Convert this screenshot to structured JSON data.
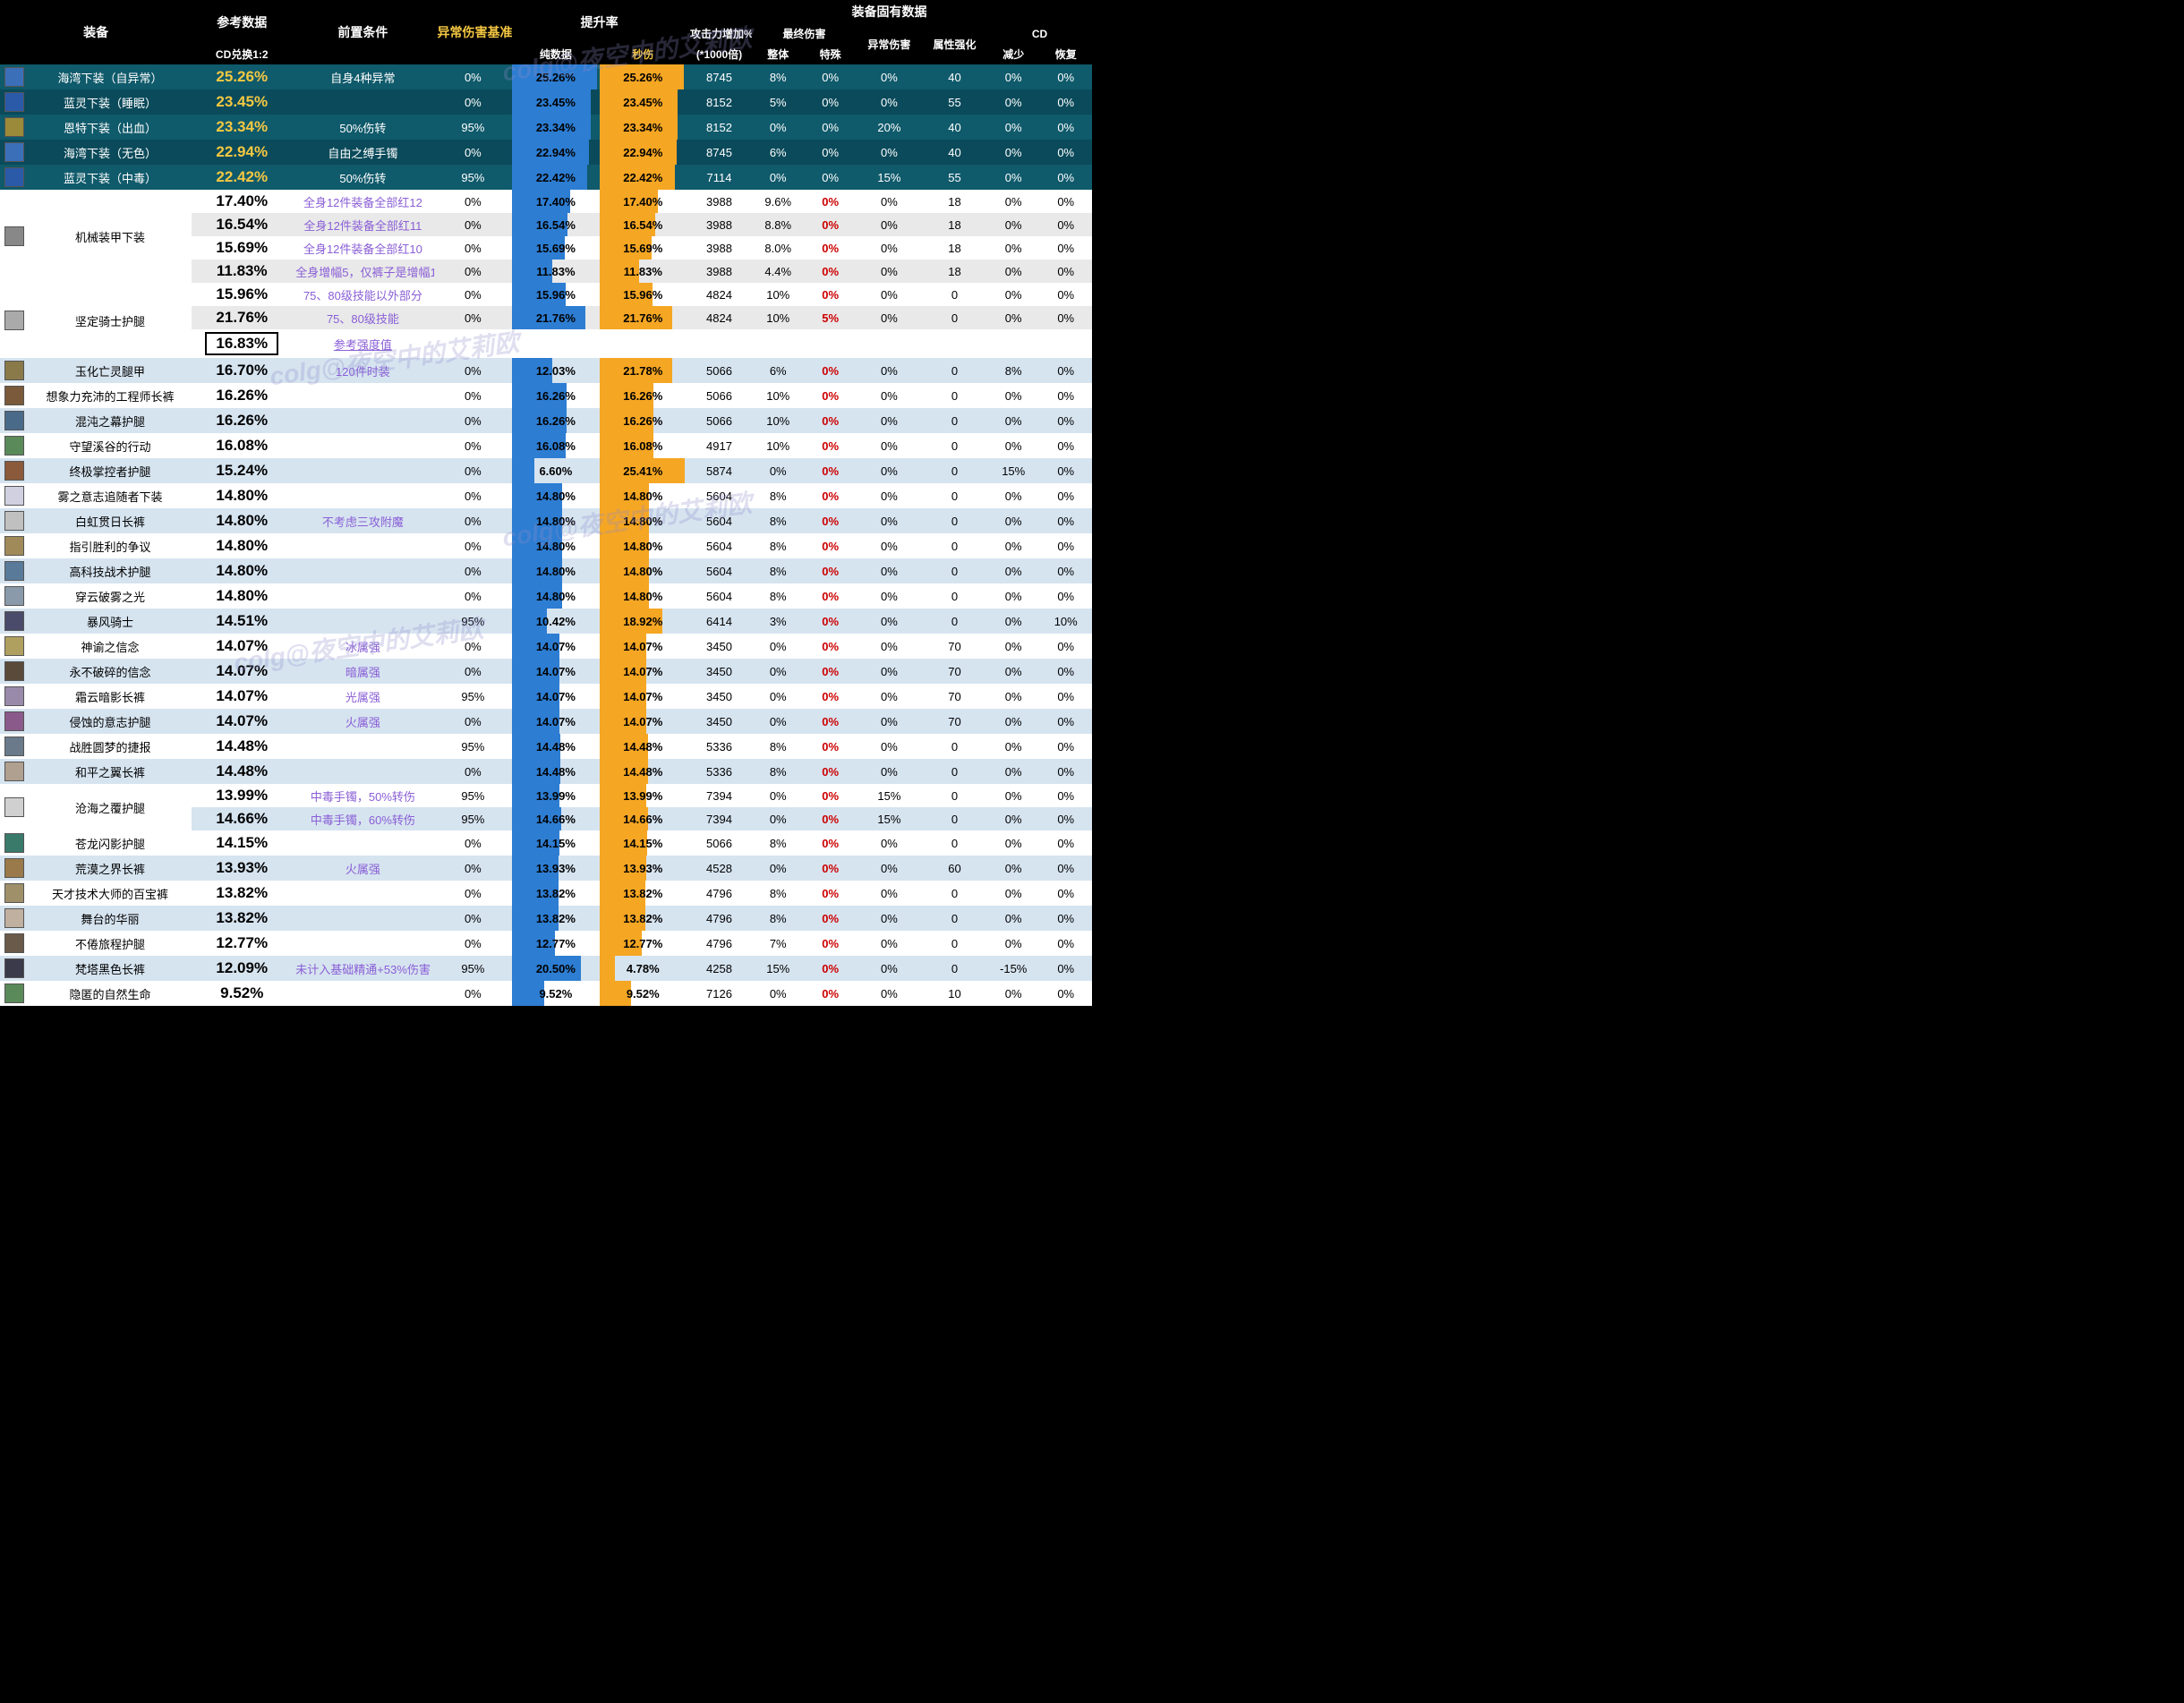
{
  "watermark": "colg@夜空中的艾莉欧",
  "headers": {
    "equip": "装备",
    "ref": "参考数据",
    "ref_sub": "CD兑换1:2",
    "cond": "前置条件",
    "abn": "异常伤害基准",
    "rate": "提升率",
    "rate_pure": "纯数据",
    "rate_dps": "秒伤",
    "inherent": "装备固有数据",
    "atk": "攻击力增加%",
    "atk_sub": "(*1000倍)",
    "final": "最终伤害",
    "final_all": "整体",
    "final_sp": "特殊",
    "abn_dmg": "异常伤害",
    "attr": "属性强化",
    "cd": "CD",
    "cd_red": "减少",
    "cd_rec": "恢复"
  },
  "max_bar": 26,
  "rows": [
    {
      "cls": "teal",
      "ic": "#3b6fb8",
      "name": "海湾下装（自异常）",
      "cd": "25.26%",
      "cdY": true,
      "cond": "自身4种异常",
      "condC": "w",
      "abn": "0%",
      "pure": "25.26%",
      "pureN": 25.26,
      "dps": "25.26%",
      "dpsN": 25.26,
      "atk": "8745",
      "fAll": "8%",
      "fSp": "0%",
      "fSpR": false,
      "ab": "0%",
      "at": "40",
      "cr": "0%",
      "cc": "0%"
    },
    {
      "cls": "teal2",
      "ic": "#2a5aa8",
      "name": "蓝灵下装（睡眠）",
      "cd": "23.45%",
      "cdY": true,
      "cond": "",
      "condC": "",
      "abn": "0%",
      "pure": "23.45%",
      "pureN": 23.45,
      "dps": "23.45%",
      "dpsN": 23.45,
      "atk": "8152",
      "fAll": "5%",
      "fSp": "0%",
      "fSpR": false,
      "ab": "0%",
      "at": "55",
      "cr": "0%",
      "cc": "0%"
    },
    {
      "cls": "teal",
      "ic": "#9a8a3a",
      "name": "恩特下装（出血）",
      "cd": "23.34%",
      "cdY": true,
      "cond": "50%伤转",
      "condC": "w",
      "abn": "95%",
      "pure": "23.34%",
      "pureN": 23.34,
      "dps": "23.34%",
      "dpsN": 23.34,
      "atk": "8152",
      "fAll": "0%",
      "fSp": "0%",
      "fSpR": false,
      "ab": "20%",
      "at": "40",
      "cr": "0%",
      "cc": "0%"
    },
    {
      "cls": "teal2",
      "ic": "#3b6fb8",
      "name": "海湾下装（无色）",
      "cd": "22.94%",
      "cdY": true,
      "cond": "自由之缚手镯",
      "condC": "w",
      "abn": "0%",
      "pure": "22.94%",
      "pureN": 22.94,
      "dps": "22.94%",
      "dpsN": 22.94,
      "atk": "8745",
      "fAll": "6%",
      "fSp": "0%",
      "fSpR": false,
      "ab": "0%",
      "at": "40",
      "cr": "0%",
      "cc": "0%"
    },
    {
      "cls": "teal",
      "ic": "#2a5aa8",
      "name": "蓝灵下装（中毒）",
      "cd": "22.42%",
      "cdY": true,
      "cond": "50%伤转",
      "condC": "w",
      "abn": "95%",
      "pure": "22.42%",
      "pureN": 22.42,
      "dps": "22.42%",
      "dpsN": 22.42,
      "atk": "7114",
      "fAll": "0%",
      "fSp": "0%",
      "fSpR": false,
      "ab": "15%",
      "at": "55",
      "cr": "0%",
      "cc": "0%"
    },
    {
      "cls": "w",
      "ic": "",
      "name": "",
      "cd": "17.40%",
      "cdY": false,
      "cond": "全身12件装备全部红12",
      "condC": "p",
      "abn": "0%",
      "pure": "17.40%",
      "pureN": 17.4,
      "dps": "17.40%",
      "dpsN": 17.4,
      "atk": "3988",
      "fAll": "9.6%",
      "fSp": "0%",
      "fSpR": true,
      "ab": "0%",
      "at": "18",
      "cr": "0%",
      "cc": "0%",
      "group": "mech",
      "gs": 4
    },
    {
      "cls": "g",
      "ic": "#888",
      "name": "机械装甲下装",
      "cd": "16.54%",
      "cdY": false,
      "cond": "全身12件装备全部红11",
      "condC": "p",
      "abn": "0%",
      "pure": "16.54%",
      "pureN": 16.54,
      "dps": "16.54%",
      "dpsN": 16.54,
      "atk": "3988",
      "fAll": "8.8%",
      "fSp": "0%",
      "fSpR": true,
      "ab": "0%",
      "at": "18",
      "cr": "0%",
      "cc": "0%",
      "group": "mech"
    },
    {
      "cls": "w",
      "ic": "",
      "name": "",
      "cd": "15.69%",
      "cdY": false,
      "cond": "全身12件装备全部红10",
      "condC": "p",
      "abn": "0%",
      "pure": "15.69%",
      "pureN": 15.69,
      "dps": "15.69%",
      "dpsN": 15.69,
      "atk": "3988",
      "fAll": "8.0%",
      "fSp": "0%",
      "fSpR": true,
      "ab": "0%",
      "at": "18",
      "cr": "0%",
      "cc": "0%",
      "group": "mech"
    },
    {
      "cls": "g",
      "ic": "",
      "name": "",
      "cd": "11.83%",
      "cdY": false,
      "cond": "全身增幅5，仅裤子是增幅10",
      "condC": "p",
      "abn": "0%",
      "pure": "11.83%",
      "pureN": 11.83,
      "dps": "11.83%",
      "dpsN": 11.83,
      "atk": "3988",
      "fAll": "4.4%",
      "fSp": "0%",
      "fSpR": true,
      "ab": "0%",
      "at": "18",
      "cr": "0%",
      "cc": "0%",
      "group": "mech"
    },
    {
      "cls": "w",
      "ic": "",
      "name": "",
      "cd": "15.96%",
      "cdY": false,
      "cond": "75、80级技能以外部分",
      "condC": "p",
      "abn": "0%",
      "pure": "15.96%",
      "pureN": 15.96,
      "dps": "15.96%",
      "dpsN": 15.96,
      "atk": "4824",
      "fAll": "10%",
      "fSp": "0%",
      "fSpR": true,
      "ab": "0%",
      "at": "0",
      "cr": "0%",
      "cc": "0%",
      "group": "knight",
      "gs": 3
    },
    {
      "cls": "g",
      "ic": "#aaa",
      "name": "坚定骑士护腿",
      "cd": "21.76%",
      "cdY": false,
      "cond": "75、80级技能",
      "condC": "p",
      "abn": "0%",
      "pure": "21.76%",
      "pureN": 21.76,
      "dps": "21.76%",
      "dpsN": 21.76,
      "atk": "4824",
      "fAll": "10%",
      "fSp": "5%",
      "fSpR": true,
      "ab": "0%",
      "at": "0",
      "cr": "0%",
      "cc": "0%",
      "group": "knight"
    },
    {
      "cls": "w",
      "ic": "",
      "name": "",
      "cd": "16.83%",
      "cdY": false,
      "cdBox": true,
      "cond": "参考强度值",
      "condC": "u",
      "abn": "",
      "pure": "",
      "pureN": 0,
      "dps": "",
      "dpsN": 0,
      "atk": "",
      "fAll": "",
      "fSp": "",
      "fSpR": false,
      "ab": "",
      "at": "",
      "cr": "",
      "cc": "",
      "group": "knight",
      "nobars": true
    },
    {
      "cls": "lb",
      "ic": "#8a7a4a",
      "name": "玉化亡灵腿甲",
      "cd": "16.70%",
      "cdY": false,
      "cond": "120件时装",
      "condC": "p",
      "abn": "0%",
      "pure": "12.03%",
      "pureN": 12.03,
      "dps": "21.78%",
      "dpsN": 21.78,
      "atk": "5066",
      "fAll": "6%",
      "fSp": "0%",
      "fSpR": true,
      "ab": "0%",
      "at": "0",
      "cr": "8%",
      "cc": "0%"
    },
    {
      "cls": "w",
      "ic": "#7a5a3a",
      "name": "想象力充沛的工程师长裤",
      "cd": "16.26%",
      "cdY": false,
      "cond": "",
      "condC": "",
      "abn": "0%",
      "pure": "16.26%",
      "pureN": 16.26,
      "dps": "16.26%",
      "dpsN": 16.26,
      "atk": "5066",
      "fAll": "10%",
      "fSp": "0%",
      "fSpR": true,
      "ab": "0%",
      "at": "0",
      "cr": "0%",
      "cc": "0%"
    },
    {
      "cls": "lb",
      "ic": "#4a6a8a",
      "name": "混沌之幕护腿",
      "cd": "16.26%",
      "cdY": false,
      "cond": "",
      "condC": "",
      "abn": "0%",
      "pure": "16.26%",
      "pureN": 16.26,
      "dps": "16.26%",
      "dpsN": 16.26,
      "atk": "5066",
      "fAll": "10%",
      "fSp": "0%",
      "fSpR": true,
      "ab": "0%",
      "at": "0",
      "cr": "0%",
      "cc": "0%"
    },
    {
      "cls": "w",
      "ic": "#5a8a5a",
      "name": "守望溪谷的行动",
      "cd": "16.08%",
      "cdY": false,
      "cond": "",
      "condC": "",
      "abn": "0%",
      "pure": "16.08%",
      "pureN": 16.08,
      "dps": "16.08%",
      "dpsN": 16.08,
      "atk": "4917",
      "fAll": "10%",
      "fSp": "0%",
      "fSpR": true,
      "ab": "0%",
      "at": "0",
      "cr": "0%",
      "cc": "0%"
    },
    {
      "cls": "lb",
      "ic": "#8a5a3a",
      "name": "终极掌控者护腿",
      "cd": "15.24%",
      "cdY": false,
      "cond": "",
      "condC": "",
      "abn": "0%",
      "pure": "6.60%",
      "pureN": 6.6,
      "dps": "25.41%",
      "dpsN": 25.41,
      "atk": "5874",
      "fAll": "0%",
      "fSp": "0%",
      "fSpR": true,
      "ab": "0%",
      "at": "0",
      "cr": "15%",
      "cc": "0%"
    },
    {
      "cls": "w",
      "ic": "#d0d0e0",
      "name": "雾之意志追随者下装",
      "cd": "14.80%",
      "cdY": false,
      "cond": "",
      "condC": "",
      "abn": "0%",
      "pure": "14.80%",
      "pureN": 14.8,
      "dps": "14.80%",
      "dpsN": 14.8,
      "atk": "5604",
      "fAll": "8%",
      "fSp": "0%",
      "fSpR": true,
      "ab": "0%",
      "at": "0",
      "cr": "0%",
      "cc": "0%"
    },
    {
      "cls": "lb",
      "ic": "#c0c0c0",
      "name": "白虹贯日长裤",
      "cd": "14.80%",
      "cdY": false,
      "cond": "不考虑三攻附魔",
      "condC": "p",
      "abn": "0%",
      "pure": "14.80%",
      "pureN": 14.8,
      "dps": "14.80%",
      "dpsN": 14.8,
      "atk": "5604",
      "fAll": "8%",
      "fSp": "0%",
      "fSpR": true,
      "ab": "0%",
      "at": "0",
      "cr": "0%",
      "cc": "0%"
    },
    {
      "cls": "w",
      "ic": "#a08a5a",
      "name": "指引胜利的争议",
      "cd": "14.80%",
      "cdY": false,
      "cond": "",
      "condC": "",
      "abn": "0%",
      "pure": "14.80%",
      "pureN": 14.8,
      "dps": "14.80%",
      "dpsN": 14.8,
      "atk": "5604",
      "fAll": "8%",
      "fSp": "0%",
      "fSpR": true,
      "ab": "0%",
      "at": "0",
      "cr": "0%",
      "cc": "0%"
    },
    {
      "cls": "lb",
      "ic": "#5a7a9a",
      "name": "高科技战术护腿",
      "cd": "14.80%",
      "cdY": false,
      "cond": "",
      "condC": "",
      "abn": "0%",
      "pure": "14.80%",
      "pureN": 14.8,
      "dps": "14.80%",
      "dpsN": 14.8,
      "atk": "5604",
      "fAll": "8%",
      "fSp": "0%",
      "fSpR": true,
      "ab": "0%",
      "at": "0",
      "cr": "0%",
      "cc": "0%"
    },
    {
      "cls": "w",
      "ic": "#8a9aaa",
      "name": "穿云破雾之光",
      "cd": "14.80%",
      "cdY": false,
      "cond": "",
      "condC": "",
      "abn": "0%",
      "pure": "14.80%",
      "pureN": 14.8,
      "dps": "14.80%",
      "dpsN": 14.8,
      "atk": "5604",
      "fAll": "8%",
      "fSp": "0%",
      "fSpR": true,
      "ab": "0%",
      "at": "0",
      "cr": "0%",
      "cc": "0%"
    },
    {
      "cls": "lb",
      "ic": "#4a4a6a",
      "name": "暴风骑士",
      "cd": "14.51%",
      "cdY": false,
      "cond": "",
      "condC": "",
      "abn": "95%",
      "pure": "10.42%",
      "pureN": 10.42,
      "dps": "18.92%",
      "dpsN": 18.92,
      "atk": "6414",
      "fAll": "3%",
      "fSp": "0%",
      "fSpR": true,
      "ab": "0%",
      "at": "0",
      "cr": "0%",
      "cc": "10%"
    },
    {
      "cls": "w",
      "ic": "#b0a060",
      "name": "神谕之信念",
      "cd": "14.07%",
      "cdY": false,
      "cond": "冰属强",
      "condC": "p",
      "abn": "0%",
      "pure": "14.07%",
      "pureN": 14.07,
      "dps": "14.07%",
      "dpsN": 14.07,
      "atk": "3450",
      "fAll": "0%",
      "fSp": "0%",
      "fSpR": true,
      "ab": "0%",
      "at": "70",
      "cr": "0%",
      "cc": "0%"
    },
    {
      "cls": "lb",
      "ic": "#5a4a3a",
      "name": "永不破碎的信念",
      "cd": "14.07%",
      "cdY": false,
      "cond": "暗属强",
      "condC": "p",
      "abn": "0%",
      "pure": "14.07%",
      "pureN": 14.07,
      "dps": "14.07%",
      "dpsN": 14.07,
      "atk": "3450",
      "fAll": "0%",
      "fSp": "0%",
      "fSpR": true,
      "ab": "0%",
      "at": "70",
      "cr": "0%",
      "cc": "0%"
    },
    {
      "cls": "w",
      "ic": "#9a8aaa",
      "name": "霜云暗影长裤",
      "cd": "14.07%",
      "cdY": false,
      "cond": "光属强",
      "condC": "p",
      "abn": "95%",
      "pure": "14.07%",
      "pureN": 14.07,
      "dps": "14.07%",
      "dpsN": 14.07,
      "atk": "3450",
      "fAll": "0%",
      "fSp": "0%",
      "fSpR": true,
      "ab": "0%",
      "at": "70",
      "cr": "0%",
      "cc": "0%"
    },
    {
      "cls": "lb",
      "ic": "#8a5a8a",
      "name": "侵蚀的意志护腿",
      "cd": "14.07%",
      "cdY": false,
      "cond": "火属强",
      "condC": "p",
      "abn": "0%",
      "pure": "14.07%",
      "pureN": 14.07,
      "dps": "14.07%",
      "dpsN": 14.07,
      "atk": "3450",
      "fAll": "0%",
      "fSp": "0%",
      "fSpR": true,
      "ab": "0%",
      "at": "70",
      "cr": "0%",
      "cc": "0%"
    },
    {
      "cls": "w",
      "ic": "#6a7a8a",
      "name": "战胜圆梦的捷报",
      "cd": "14.48%",
      "cdY": false,
      "cond": "",
      "condC": "",
      "abn": "95%",
      "pure": "14.48%",
      "pureN": 14.48,
      "dps": "14.48%",
      "dpsN": 14.48,
      "atk": "5336",
      "fAll": "8%",
      "fSp": "0%",
      "fSpR": true,
      "ab": "0%",
      "at": "0",
      "cr": "0%",
      "cc": "0%"
    },
    {
      "cls": "lb",
      "ic": "#b0a090",
      "name": "和平之翼长裤",
      "cd": "14.48%",
      "cdY": false,
      "cond": "",
      "condC": "",
      "abn": "0%",
      "pure": "14.48%",
      "pureN": 14.48,
      "dps": "14.48%",
      "dpsN": 14.48,
      "atk": "5336",
      "fAll": "8%",
      "fSp": "0%",
      "fSpR": true,
      "ab": "0%",
      "at": "0",
      "cr": "0%",
      "cc": "0%"
    },
    {
      "cls": "w",
      "ic": "",
      "name": "",
      "cd": "13.99%",
      "cdY": false,
      "cond": "中毒手镯，50%转伤",
      "condC": "p",
      "abn": "95%",
      "pure": "13.99%",
      "pureN": 13.99,
      "dps": "13.99%",
      "dpsN": 13.99,
      "atk": "7394",
      "fAll": "0%",
      "fSp": "0%",
      "fSpR": true,
      "ab": "15%",
      "at": "0",
      "cr": "0%",
      "cc": "0%",
      "group": "sea",
      "gs": 2
    },
    {
      "cls": "lb",
      "ic": "#d0d0d0",
      "name": "沧海之覆护腿",
      "cd": "14.66%",
      "cdY": false,
      "cond": "中毒手镯，60%转伤",
      "condC": "p",
      "abn": "95%",
      "pure": "14.66%",
      "pureN": 14.66,
      "dps": "14.66%",
      "dpsN": 14.66,
      "atk": "7394",
      "fAll": "0%",
      "fSp": "0%",
      "fSpR": true,
      "ab": "15%",
      "at": "0",
      "cr": "0%",
      "cc": "0%",
      "group": "sea"
    },
    {
      "cls": "w",
      "ic": "#3a7a6a",
      "name": "苍龙闪影护腿",
      "cd": "14.15%",
      "cdY": false,
      "cond": "",
      "condC": "",
      "abn": "0%",
      "pure": "14.15%",
      "pureN": 14.15,
      "dps": "14.15%",
      "dpsN": 14.15,
      "atk": "5066",
      "fAll": "8%",
      "fSp": "0%",
      "fSpR": true,
      "ab": "0%",
      "at": "0",
      "cr": "0%",
      "cc": "0%"
    },
    {
      "cls": "lb",
      "ic": "#9a7a4a",
      "name": "荒漠之界长裤",
      "cd": "13.93%",
      "cdY": false,
      "cond": "火属强",
      "condC": "p",
      "abn": "0%",
      "pure": "13.93%",
      "pureN": 13.93,
      "dps": "13.93%",
      "dpsN": 13.93,
      "atk": "4528",
      "fAll": "0%",
      "fSp": "0%",
      "fSpR": true,
      "ab": "0%",
      "at": "60",
      "cr": "0%",
      "cc": "0%"
    },
    {
      "cls": "w",
      "ic": "#a0906a",
      "name": "天才技术大师的百宝裤",
      "cd": "13.82%",
      "cdY": false,
      "cond": "",
      "condC": "",
      "abn": "0%",
      "pure": "13.82%",
      "pureN": 13.82,
      "dps": "13.82%",
      "dpsN": 13.82,
      "atk": "4796",
      "fAll": "8%",
      "fSp": "0%",
      "fSpR": true,
      "ab": "0%",
      "at": "0",
      "cr": "0%",
      "cc": "0%"
    },
    {
      "cls": "lb",
      "ic": "#c0b0a0",
      "name": "舞台的华丽",
      "cd": "13.82%",
      "cdY": false,
      "cond": "",
      "condC": "",
      "abn": "0%",
      "pure": "13.82%",
      "pureN": 13.82,
      "dps": "13.82%",
      "dpsN": 13.82,
      "atk": "4796",
      "fAll": "8%",
      "fSp": "0%",
      "fSpR": true,
      "ab": "0%",
      "at": "0",
      "cr": "0%",
      "cc": "0%"
    },
    {
      "cls": "w",
      "ic": "#6a5a4a",
      "name": "不倦旅程护腿",
      "cd": "12.77%",
      "cdY": false,
      "cond": "",
      "condC": "",
      "abn": "0%",
      "pure": "12.77%",
      "pureN": 12.77,
      "dps": "12.77%",
      "dpsN": 12.77,
      "atk": "4796",
      "fAll": "7%",
      "fSp": "0%",
      "fSpR": true,
      "ab": "0%",
      "at": "0",
      "cr": "0%",
      "cc": "0%"
    },
    {
      "cls": "lb",
      "ic": "#3a3a4a",
      "name": "梵塔黑色长裤",
      "cd": "12.09%",
      "cdY": false,
      "cond": "未计入基础精通+53%伤害",
      "condC": "p",
      "abn": "95%",
      "pure": "20.50%",
      "pureN": 20.5,
      "dps": "4.78%",
      "dpsN": 4.78,
      "atk": "4258",
      "fAll": "15%",
      "fSp": "0%",
      "fSpR": true,
      "ab": "0%",
      "at": "0",
      "cr": "-15%",
      "cc": "0%"
    },
    {
      "cls": "w",
      "ic": "#5a8a5a",
      "name": "隐匿的自然生命",
      "cd": "9.52%",
      "cdY": false,
      "cond": "",
      "condC": "",
      "abn": "0%",
      "pure": "9.52%",
      "pureN": 9.52,
      "dps": "9.52%",
      "dpsN": 9.52,
      "atk": "7126",
      "fAll": "0%",
      "fSp": "0%",
      "fSpR": true,
      "ab": "0%",
      "at": "10",
      "cr": "0%",
      "cc": "0%"
    }
  ]
}
